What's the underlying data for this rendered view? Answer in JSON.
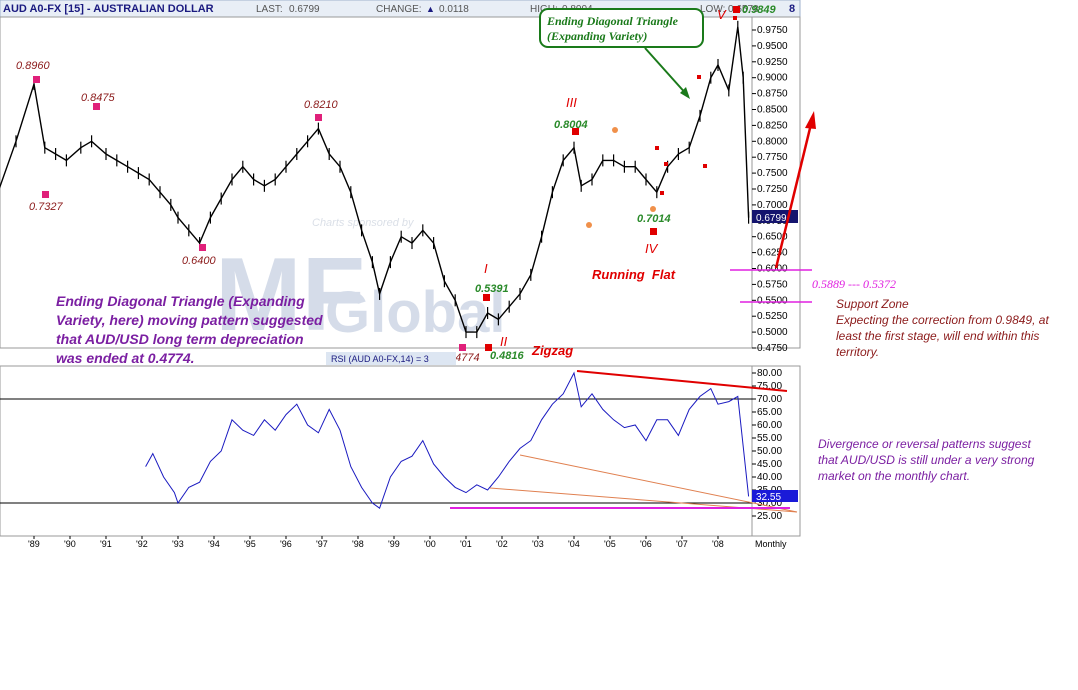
{
  "header": {
    "symbol": "AUD A0-FX [15] - AUSTRALIAN DOLLAR",
    "last_label": "LAST:",
    "last_value": "0.6799",
    "change_label": "CHANGE:",
    "change_value": "0.0118",
    "high_label": "HIGH:",
    "high_value": "0.8004",
    "low_label": "LOW:",
    "low_value": "0.6578",
    "trailing": "8"
  },
  "chart_data": [
    {
      "type": "line",
      "panel": "price",
      "timeframe": "Monthly",
      "ylim": [
        0.4625,
        0.9875
      ],
      "y_ticks": [
        "0.9750",
        "0.9500",
        "0.9250",
        "0.9000",
        "0.8750",
        "0.8500",
        "0.8250",
        "0.8000",
        "0.7750",
        "0.7500",
        "0.7250",
        "0.7000",
        "0.6750",
        "0.6500",
        "0.6250",
        "0.6000",
        "0.5750",
        "0.5500",
        "0.5250",
        "0.5000",
        "0.4750"
      ],
      "x_ticks": [
        "'89",
        "'90",
        "'91",
        "'92",
        "'93",
        "'94",
        "'95",
        "'96",
        "'97",
        "'98",
        "'99",
        "'00",
        "'01",
        "'02",
        "'03",
        "'04",
        "'05",
        "'06",
        "'07",
        "'08"
      ],
      "last_price_label": "0.6799",
      "series": [
        {
          "x": [
            1988.0,
            1988.5,
            1989.0,
            1989.3,
            1989.6,
            1989.9,
            1990.3,
            1990.6,
            1991.0,
            1991.3,
            1991.6,
            1991.9,
            1992.2,
            1992.5,
            1992.8,
            1993.0,
            1993.3,
            1993.6,
            1993.9,
            1994.2,
            1994.5,
            1994.8,
            1995.1,
            1995.4,
            1995.7,
            1996.0,
            1996.3,
            1996.6,
            1996.9,
            1997.2,
            1997.5,
            1997.8,
            1998.1,
            1998.4,
            1998.6,
            1998.9,
            1999.2,
            1999.5,
            1999.8,
            2000.1,
            2000.4,
            2000.7,
            2001.0,
            2001.3,
            2001.6,
            2001.9,
            2002.2,
            2002.5,
            2002.8,
            2003.1,
            2003.4,
            2003.7,
            2004.0,
            2004.2,
            2004.5,
            2004.8,
            2005.1,
            2005.4,
            2005.7,
            2006.0,
            2006.3,
            2006.6,
            2006.9,
            2007.2,
            2007.5,
            2007.8,
            2008.0,
            2008.3,
            2008.55,
            2008.7,
            2008.85
          ],
          "values": [
            0.72,
            0.8,
            0.89,
            0.79,
            0.78,
            0.77,
            0.79,
            0.8,
            0.78,
            0.77,
            0.76,
            0.75,
            0.74,
            0.72,
            0.7,
            0.68,
            0.66,
            0.64,
            0.68,
            0.71,
            0.74,
            0.76,
            0.74,
            0.73,
            0.74,
            0.76,
            0.78,
            0.8,
            0.82,
            0.78,
            0.76,
            0.72,
            0.66,
            0.61,
            0.56,
            0.61,
            0.65,
            0.64,
            0.66,
            0.64,
            0.58,
            0.55,
            0.5,
            0.5,
            0.53,
            0.52,
            0.54,
            0.56,
            0.59,
            0.65,
            0.72,
            0.77,
            0.79,
            0.73,
            0.74,
            0.77,
            0.77,
            0.76,
            0.76,
            0.74,
            0.72,
            0.76,
            0.78,
            0.79,
            0.84,
            0.9,
            0.92,
            0.88,
            0.98,
            0.9,
            0.6799
          ]
        }
      ],
      "annotations": [
        "0.8960",
        "0.7327",
        "0.8475",
        "0.6400",
        "0.8210",
        "0.4774",
        "I",
        "0.5391",
        "II",
        "0.4816",
        "Zigzag",
        "III",
        "0.8004",
        "0.7014",
        "IV",
        "Running  Flat",
        "V",
        "0.9849"
      ],
      "watermark": "Charts sponsored by"
    },
    {
      "type": "line",
      "panel": "rsi",
      "ylim": [
        20,
        82
      ],
      "y_ticks": [
        "80.00",
        "75.00",
        "70.00",
        "65.00",
        "60.00",
        "55.00",
        "50.00",
        "45.00",
        "40.00",
        "35.00",
        "30.00",
        "25.00"
      ],
      "label": "RSI (AUD A0-FX,14) = 3",
      "last_value_label": "32.55",
      "series": [
        {
          "x": [
            1992.1,
            1992.3,
            1992.6,
            1992.9,
            1993.0,
            1993.3,
            1993.6,
            1993.9,
            1994.2,
            1994.5,
            1994.8,
            1995.1,
            1995.4,
            1995.7,
            1996.0,
            1996.3,
            1996.6,
            1996.9,
            1997.2,
            1997.5,
            1997.8,
            1998.1,
            1998.4,
            1998.6,
            1998.9,
            1999.2,
            1999.5,
            1999.8,
            2000.1,
            2000.4,
            2000.7,
            2001.0,
            2001.3,
            2001.6,
            2001.9,
            2002.2,
            2002.5,
            2002.8,
            2003.1,
            2003.4,
            2003.7,
            2004.0,
            2004.2,
            2004.5,
            2004.8,
            2005.1,
            2005.4,
            2005.7,
            2006.0,
            2006.3,
            2006.6,
            2006.9,
            2007.2,
            2007.5,
            2007.8,
            2008.0,
            2008.3,
            2008.55,
            2008.85
          ],
          "values": [
            44,
            49,
            40,
            34,
            30,
            36,
            38,
            46,
            50,
            62,
            58,
            56,
            62,
            58,
            64,
            68,
            60,
            57,
            66,
            58,
            44,
            36,
            30,
            28,
            40,
            46,
            48,
            54,
            45,
            40,
            36,
            34,
            37,
            35,
            40,
            46,
            51,
            54,
            62,
            68,
            72,
            80,
            67,
            72,
            66,
            62,
            59,
            60,
            54,
            62,
            62,
            56,
            66,
            71,
            74,
            68,
            69,
            71,
            32.55
          ]
        }
      ],
      "extra_labels": [
        "Monthly"
      ]
    }
  ],
  "notes": {
    "ending_diagonal_box": [
      "Ending Diagonal Triangle",
      "(Expanding Variety)"
    ],
    "left_note": [
      "Ending Diagonal Triangle (Expanding",
      "Variety, here) moving pattern suggested",
      "that AUD/USD long term depreciation",
      "was ended at 0.4774."
    ],
    "support_range": "0.5889 --- 0.5372",
    "support_zone": [
      "Support Zone",
      "Expecting the correction from 0.9849, at",
      "least the first stage, will end within this",
      "territory."
    ],
    "divergence": [
      "Divergence or reversal patterns suggest",
      "that AUD/USD is still under a very strong",
      "market on the monthly chart."
    ]
  },
  "colors": {
    "price": "#000000",
    "rsi": "#1a1ac0",
    "header_title": "#1a1a80",
    "marker_pink": "#e0207a",
    "marker_red": "#e00000",
    "note_purple": "#7b1fa2",
    "box_green": "#1a7a1a",
    "magenta_line": "#e020e0"
  }
}
